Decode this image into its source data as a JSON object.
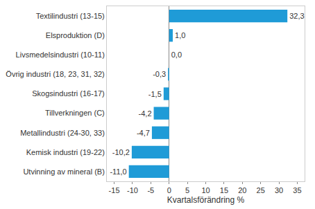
{
  "chart_data": {
    "type": "bar",
    "orientation": "horizontal",
    "categories": [
      "Textilindustri (13-15)",
      "Elsproduktion (D)",
      "Livsmedelsindustri (10-11)",
      "Övrig industri (18, 23, 31, 32)",
      "Skogsindustri (16-17)",
      "Tillverkningen (C)",
      "Metallindustri (24-30, 33)",
      "Kemisk industri (19-22)",
      "Utvinning av mineral (B)"
    ],
    "values": [
      32.3,
      1.0,
      0.0,
      -0.3,
      -1.5,
      -4.2,
      -4.7,
      -10.2,
      -11.0
    ],
    "value_labels": [
      "32,3",
      "1,0",
      "0,0",
      "-0,3",
      "-1,5",
      "-4,2",
      "-4,7",
      "-10,2",
      "-11,0"
    ],
    "data_labels": true,
    "color": "#1f9bd7",
    "x_label": "Kvartalsförändring %",
    "xlim": [
      -17,
      37
    ],
    "xticks": [
      -15,
      -10,
      -5,
      0,
      5,
      10,
      15,
      20,
      25,
      30,
      35
    ],
    "grid": false
  }
}
